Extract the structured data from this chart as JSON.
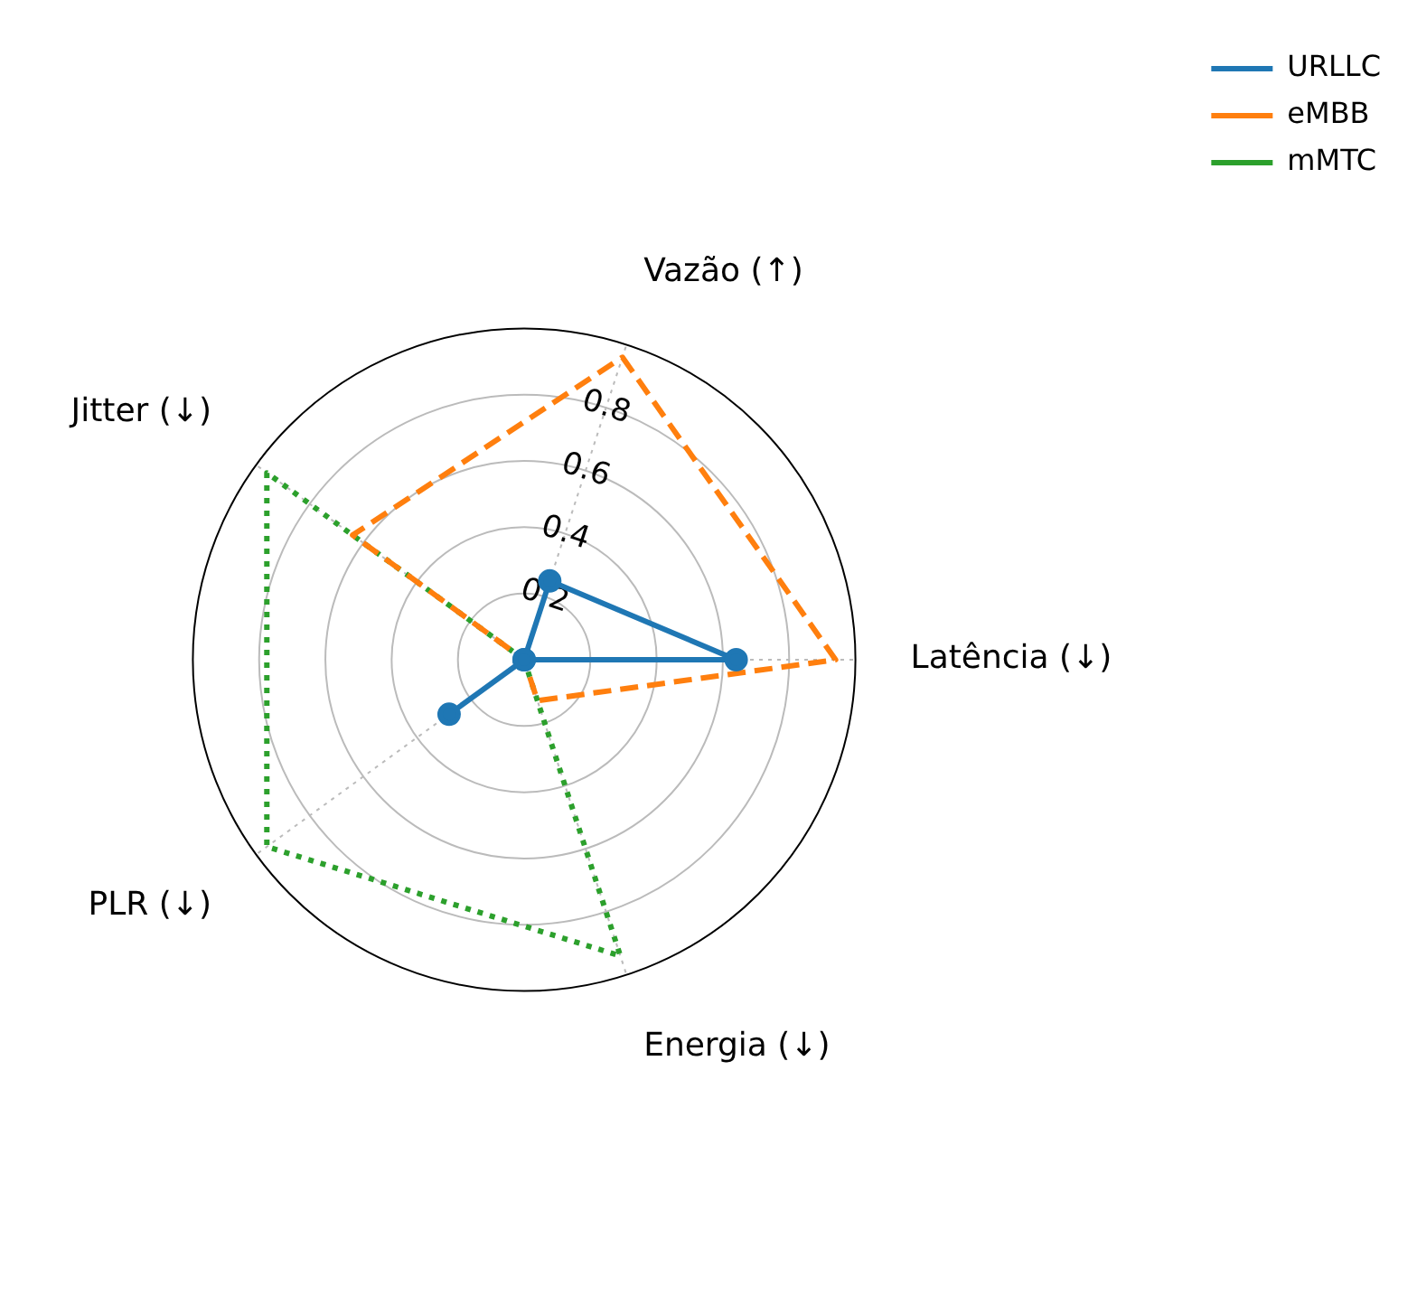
{
  "chart_data": {
    "type": "radar",
    "categories": [
      "Vazão (↑)",
      "Latência (↓)",
      "Energia (↓)",
      "PLR (↓)",
      "Jitter (↓)"
    ],
    "series": [
      {
        "name": "URLLC",
        "color": "#1f77b4",
        "values": [
          0.25,
          0.64,
          0,
          0.28,
          0
        ],
        "line_style": "solid",
        "marker": "circle"
      },
      {
        "name": "eMBB",
        "color": "#ff7f0e",
        "values": [
          0.96,
          0.94,
          0.13,
          0,
          0.64
        ],
        "line_style": "dashed",
        "marker": "none"
      },
      {
        "name": "mMTC",
        "color": "#2ca02c",
        "values": [
          0,
          0,
          0.94,
          0.96,
          0.96
        ],
        "line_style": "dotted",
        "marker": "none"
      }
    ],
    "ylim": [
      0,
      1
    ],
    "yticks": [
      0.2,
      0.4,
      0.6,
      0.8
    ],
    "grid": true,
    "legend": "top right"
  }
}
